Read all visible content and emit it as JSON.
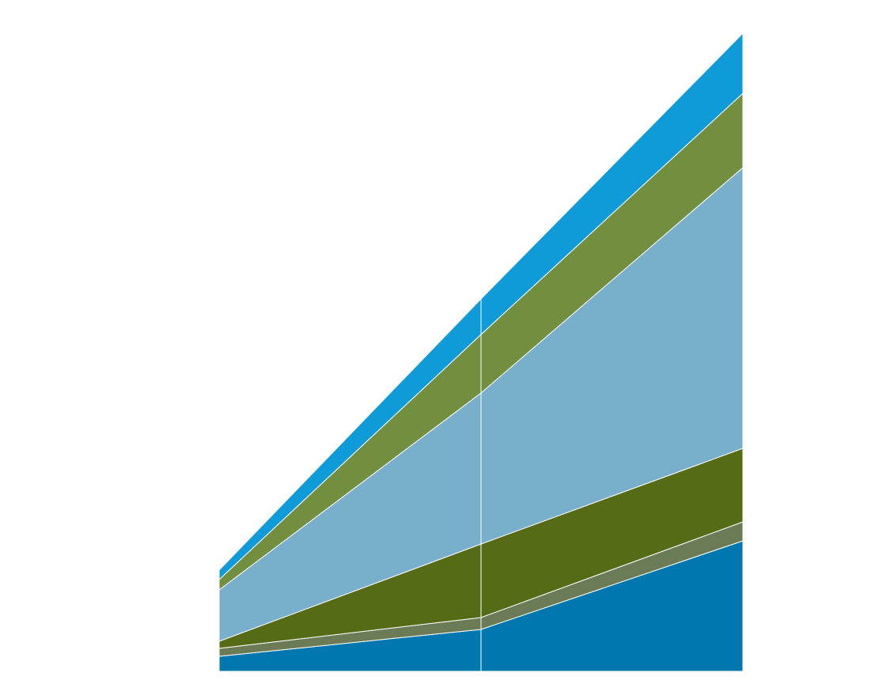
{
  "chart_data": {
    "type": "stacked-area",
    "categories": [
      null,
      null,
      null
    ],
    "series": [
      {
        "color": "#0077ae",
        "values": [
          19,
          53,
          165
        ]
      },
      {
        "color": "#6b7b55",
        "values": [
          10,
          15,
          24
        ]
      },
      {
        "color": "#566b16",
        "values": [
          9,
          93,
          93
        ]
      },
      {
        "color": "#78afca",
        "values": [
          65,
          191,
          355
        ]
      },
      {
        "color": "#728f3f",
        "values": [
          13,
          74,
          94
        ]
      },
      {
        "color": "#0e9bd8",
        "values": [
          12,
          45,
          76
        ]
      }
    ],
    "ylim": [
      0,
      807
    ]
  }
}
